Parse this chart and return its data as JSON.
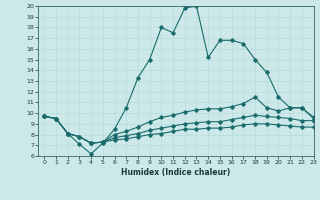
{
  "title": "",
  "xlabel": "Humidex (Indice chaleur)",
  "background_color": "#cce8e8",
  "line_color": "#1a6b6b",
  "xlim": [
    -0.5,
    23
  ],
  "ylim": [
    6,
    20
  ],
  "xticks": [
    0,
    1,
    2,
    3,
    4,
    5,
    6,
    7,
    8,
    9,
    10,
    11,
    12,
    13,
    14,
    15,
    16,
    17,
    18,
    19,
    20,
    21,
    22,
    23
  ],
  "yticks": [
    6,
    7,
    8,
    9,
    10,
    11,
    12,
    13,
    14,
    15,
    16,
    17,
    18,
    19,
    20
  ],
  "curve1_x": [
    0,
    1,
    2,
    3,
    4,
    5,
    6,
    7,
    8,
    9,
    10,
    11,
    12,
    13,
    14,
    15,
    16,
    17,
    18,
    19,
    20,
    21,
    22,
    23
  ],
  "curve1_y": [
    9.7,
    9.5,
    8.1,
    7.1,
    6.2,
    7.2,
    8.5,
    10.5,
    13.3,
    15.0,
    18.0,
    17.5,
    19.8,
    20.0,
    15.2,
    16.8,
    16.8,
    16.5,
    15.0,
    13.8,
    11.5,
    10.5,
    10.5,
    9.5
  ],
  "curve2_x": [
    0,
    1,
    2,
    3,
    4,
    5,
    6,
    7,
    8,
    9,
    10,
    11,
    12,
    13,
    14,
    15,
    16,
    17,
    18,
    19,
    20,
    21,
    22,
    23
  ],
  "curve2_y": [
    9.7,
    9.5,
    8.1,
    7.8,
    7.2,
    7.3,
    8.0,
    8.3,
    8.7,
    9.2,
    9.6,
    9.8,
    10.1,
    10.3,
    10.4,
    10.4,
    10.6,
    10.9,
    11.5,
    10.5,
    10.2,
    10.5,
    10.5,
    9.6
  ],
  "curve3_x": [
    0,
    1,
    2,
    3,
    4,
    5,
    6,
    7,
    8,
    9,
    10,
    11,
    12,
    13,
    14,
    15,
    16,
    17,
    18,
    19,
    20,
    21,
    22,
    23
  ],
  "curve3_y": [
    9.7,
    9.5,
    8.1,
    7.8,
    7.2,
    7.3,
    7.7,
    7.9,
    8.1,
    8.4,
    8.6,
    8.8,
    9.0,
    9.1,
    9.2,
    9.2,
    9.4,
    9.6,
    9.8,
    9.7,
    9.6,
    9.5,
    9.3,
    9.3
  ],
  "curve4_x": [
    0,
    1,
    2,
    3,
    4,
    5,
    6,
    7,
    8,
    9,
    10,
    11,
    12,
    13,
    14,
    15,
    16,
    17,
    18,
    19,
    20,
    21,
    22,
    23
  ],
  "curve4_y": [
    9.7,
    9.5,
    8.1,
    7.8,
    7.2,
    7.3,
    7.5,
    7.6,
    7.8,
    8.0,
    8.1,
    8.3,
    8.5,
    8.5,
    8.6,
    8.6,
    8.7,
    8.9,
    9.0,
    9.0,
    8.9,
    8.8,
    8.7,
    8.7
  ]
}
